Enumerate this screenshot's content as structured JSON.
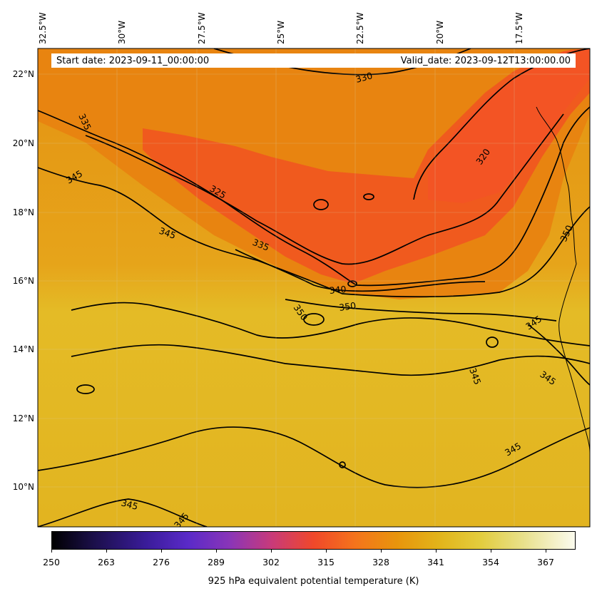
{
  "header": {
    "start_date": "Start date: 2023-09-11_00:00:00",
    "valid_date": "Valid_date: 2023-09-12T13:00:00.00"
  },
  "map": {
    "lon_labels": [
      "32.5°W",
      "30°W",
      "27.5°W",
      "25°W",
      "22.5°W",
      "20°W",
      "17.5°W"
    ],
    "lat_labels": [
      "22°N",
      "20°N",
      "18°N",
      "16°N",
      "14°N",
      "12°N",
      "10°N"
    ],
    "contour_labels": [
      "330",
      "335",
      "345",
      "325",
      "320",
      "345",
      "335",
      "350",
      "340",
      "350",
      "350",
      "345",
      "345",
      "345",
      "345",
      "345",
      "345"
    ],
    "colors": {
      "warm_orange": "#f05a1e",
      "orange": "#e68c0e",
      "yellow": "#e4bd24",
      "contour": "#000000"
    }
  },
  "colorbar": {
    "ticks": [
      "250",
      "263",
      "276",
      "289",
      "302",
      "315",
      "328",
      "341",
      "354",
      "367"
    ],
    "label": "925 hPa equivalent potential temperature (K)",
    "colormap": "CMRmap"
  }
}
